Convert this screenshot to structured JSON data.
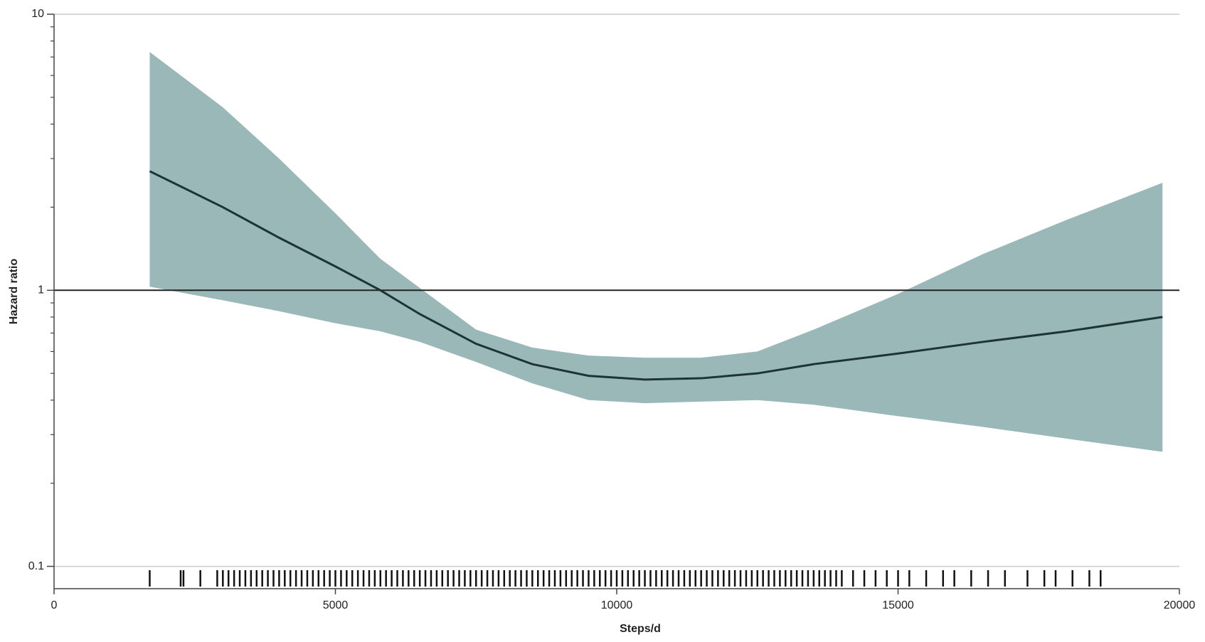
{
  "chart_data": {
    "type": "line",
    "xlabel": "Steps/d",
    "ylabel": "Hazard ratio",
    "x": [
      1700,
      3000,
      4000,
      5000,
      5800,
      6500,
      7500,
      8500,
      9500,
      10500,
      11500,
      12500,
      13500,
      15000,
      16500,
      18000,
      19700
    ],
    "values": [
      2.7,
      2.0,
      1.55,
      1.22,
      1.0,
      0.82,
      0.64,
      0.54,
      0.49,
      0.475,
      0.48,
      0.5,
      0.54,
      0.59,
      0.65,
      0.71,
      0.8
    ],
    "upper": [
      7.3,
      4.6,
      3.0,
      1.9,
      1.3,
      1.02,
      0.72,
      0.62,
      0.58,
      0.57,
      0.57,
      0.6,
      0.72,
      0.97,
      1.35,
      1.8,
      2.45
    ],
    "lower": [
      1.03,
      0.92,
      0.84,
      0.76,
      0.71,
      0.65,
      0.55,
      0.46,
      0.4,
      0.39,
      0.395,
      0.4,
      0.385,
      0.35,
      0.32,
      0.29,
      0.26
    ],
    "color": "#1e3434",
    "band_color": "#9ab8b8",
    "reference_line": 1,
    "rug": [
      1700,
      2250,
      2300,
      2600,
      2900,
      3000,
      3100,
      3200,
      3300,
      3400,
      3500,
      3600,
      3700,
      3800,
      3900,
      4000,
      4100,
      4200,
      4300,
      4400,
      4500,
      4600,
      4700,
      4800,
      4900,
      5000,
      5100,
      5200,
      5300,
      5400,
      5500,
      5600,
      5700,
      5800,
      5900,
      6000,
      6100,
      6200,
      6300,
      6400,
      6500,
      6600,
      6700,
      6800,
      6900,
      7000,
      7100,
      7200,
      7300,
      7400,
      7500,
      7600,
      7700,
      7800,
      7900,
      8000,
      8100,
      8200,
      8300,
      8400,
      8500,
      8600,
      8700,
      8800,
      8900,
      9000,
      9100,
      9200,
      9300,
      9400,
      9500,
      9600,
      9700,
      9800,
      9900,
      10000,
      10100,
      10200,
      10300,
      10400,
      10500,
      10600,
      10700,
      10800,
      10900,
      11000,
      11100,
      11200,
      11300,
      11400,
      11500,
      11600,
      11700,
      11800,
      11900,
      12000,
      12100,
      12200,
      12300,
      12400,
      12500,
      12600,
      12700,
      12800,
      12900,
      13000,
      13100,
      13200,
      13300,
      13400,
      13500,
      13600,
      13700,
      13800,
      13900,
      14000,
      14200,
      14400,
      14600,
      14800,
      15000,
      15200,
      15500,
      15800,
      16000,
      16300,
      16600,
      16900,
      17300,
      17600,
      17800,
      18100,
      18400,
      18600
    ],
    "xlim": [
      0,
      20000
    ],
    "xticks": [
      0,
      5000,
      10000,
      15000,
      20000
    ],
    "ylim": [
      0.083,
      10
    ],
    "yticks": [
      0.1,
      1,
      10
    ],
    "log_y": true,
    "yminor_ticks": [
      0.2,
      0.3,
      0.4,
      0.5,
      0.6,
      0.7,
      0.8,
      0.9,
      2,
      3,
      4,
      5,
      6,
      7,
      8,
      9
    ],
    "grid": true
  }
}
